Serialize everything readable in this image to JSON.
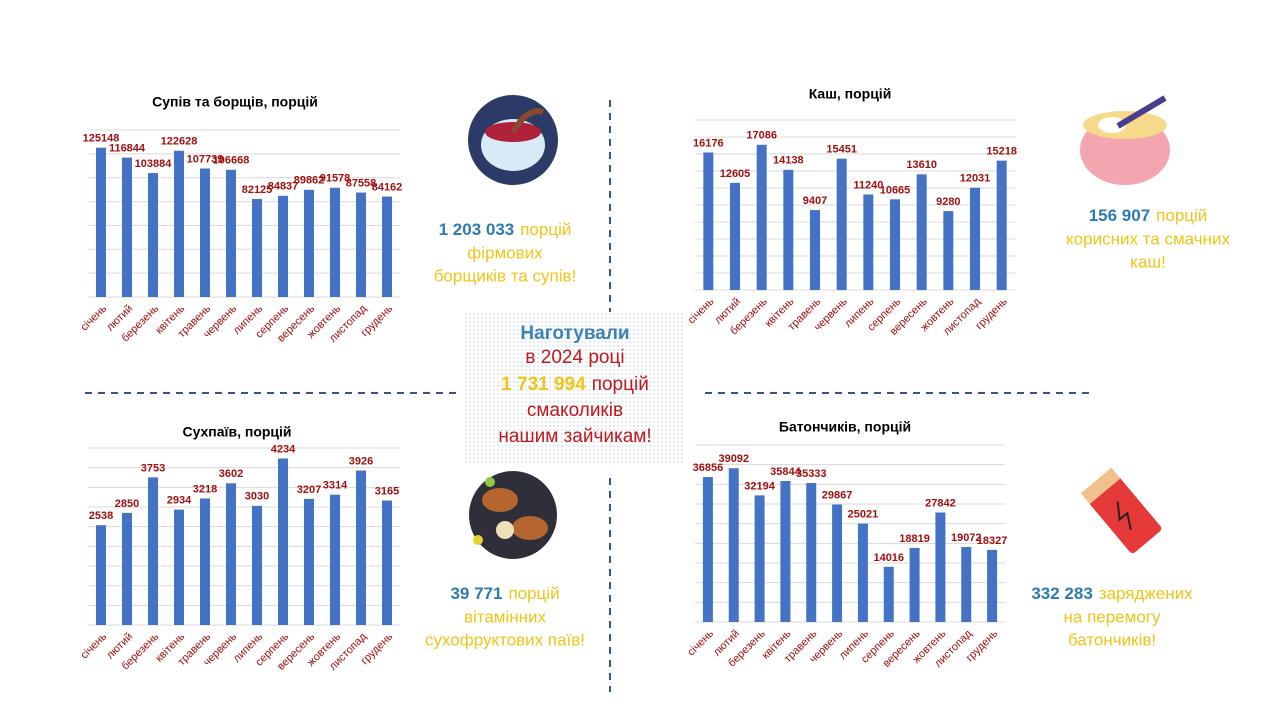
{
  "chart_data": [
    {
      "type": "bar",
      "title": "Супів та борщів, порцій",
      "categories": [
        "січень",
        "лютий",
        "березень",
        "квітень",
        "травень",
        "червень",
        "липень",
        "серпень",
        "вересень",
        "жовтень",
        "листопад",
        "грудень"
      ],
      "values": [
        125148,
        116844,
        103884,
        122628,
        107739,
        106668,
        82125,
        84837,
        89862,
        91578,
        87558,
        84162
      ],
      "color": "#4472c4",
      "ylim": [
        0,
        140000
      ],
      "grid_lines": [
        0,
        20000,
        40000,
        60000,
        80000,
        100000,
        120000,
        140000
      ],
      "grid": true
    },
    {
      "type": "bar",
      "title": "Каш, порцій",
      "categories": [
        "січень",
        "лютий",
        "березень",
        "квітень",
        "травень",
        "червень",
        "липень",
        "серпень",
        "вересень",
        "жовтень",
        "листопад",
        "грудень"
      ],
      "values": [
        16176,
        12605,
        17086,
        14138,
        9407,
        15451,
        11240,
        10665,
        13610,
        9280,
        12031,
        15218
      ],
      "color": "#4472c4",
      "ylim": [
        0,
        20000
      ],
      "grid_lines": [
        0,
        2000,
        4000,
        6000,
        8000,
        10000,
        12000,
        14000,
        16000,
        18000,
        20000
      ],
      "grid": true
    },
    {
      "type": "bar",
      "title": "Сухпаїв, порцій",
      "categories": [
        "січень",
        "лютий",
        "березень",
        "квітень",
        "травень",
        "червень",
        "липень",
        "серпень",
        "вересень",
        "жовтень",
        "листопад",
        "грудень"
      ],
      "values": [
        2538,
        2850,
        3753,
        2934,
        3218,
        3602,
        3030,
        4234,
        3207,
        3314,
        3926,
        3165
      ],
      "color": "#4472c4",
      "ylim": [
        0,
        4500
      ],
      "grid_lines": [
        0,
        500,
        1000,
        1500,
        2000,
        2500,
        3000,
        3500,
        4000,
        4500
      ],
      "grid": true
    },
    {
      "type": "bar",
      "title": "Батончиків, порцій",
      "categories": [
        "січень",
        "лютий",
        "березень",
        "квітень",
        "травень",
        "червень",
        "липень",
        "серпень",
        "вересень",
        "жовтень",
        "листопад",
        "грудень"
      ],
      "values": [
        36856,
        39092,
        32194,
        35844,
        35333,
        29867,
        25021,
        14016,
        18819,
        27842,
        19072,
        18327
      ],
      "color": "#4472c4",
      "ylim": [
        0,
        45000
      ],
      "grid_lines": [
        0,
        5000,
        10000,
        15000,
        20000,
        25000,
        30000,
        35000,
        40000,
        45000
      ],
      "grid": true
    }
  ],
  "captions": [
    {
      "number": "1 203 033",
      "lines": [
        "порцій",
        "фірмових",
        "борщиків та супів!"
      ]
    },
    {
      "number": "156 907",
      "lines": [
        "порцій",
        "корисних та смачних",
        "каш!"
      ]
    },
    {
      "number": "39 771",
      "lines": [
        "порцій",
        "вітамінних",
        "сухофруктових паїв!"
      ]
    },
    {
      "number": "332 283",
      "lines": [
        "заряджених",
        "на перемогу",
        "батончиків!"
      ]
    }
  ],
  "center": {
    "heading": "Наготували",
    "line1": "в 2024 році",
    "number": "1 731 994",
    "line2": "порцій",
    "line3": "смаколиків",
    "line4": "нашим зайчикам!"
  }
}
